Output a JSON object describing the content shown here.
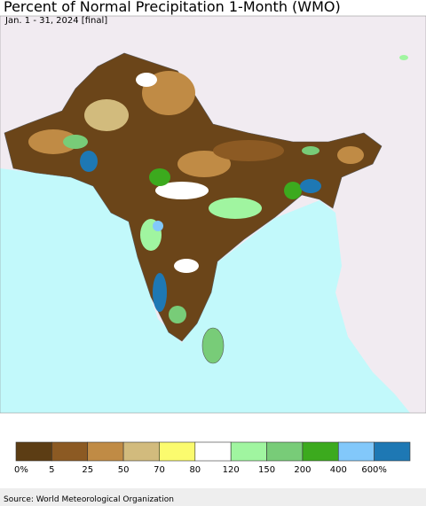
{
  "header": {
    "title": "Percent of Normal Precipitation 1-Month (WMO)",
    "subtitle": "Jan. 1 - 31, 2024 [final]"
  },
  "legend": {
    "colors": [
      "#5c3d14",
      "#8c5a23",
      "#c08b45",
      "#d2bb7d",
      "#fbfb6e",
      "#ffffff",
      "#a0f5a0",
      "#78cc78",
      "#3caa1e",
      "#82c8fa",
      "#1e78b4"
    ],
    "labels": [
      "0%",
      "5",
      "25",
      "50",
      "70",
      "80",
      "120",
      "150",
      "200",
      "400",
      "600%"
    ]
  },
  "footer": {
    "source": "Source: World Meteorological Organization"
  }
}
